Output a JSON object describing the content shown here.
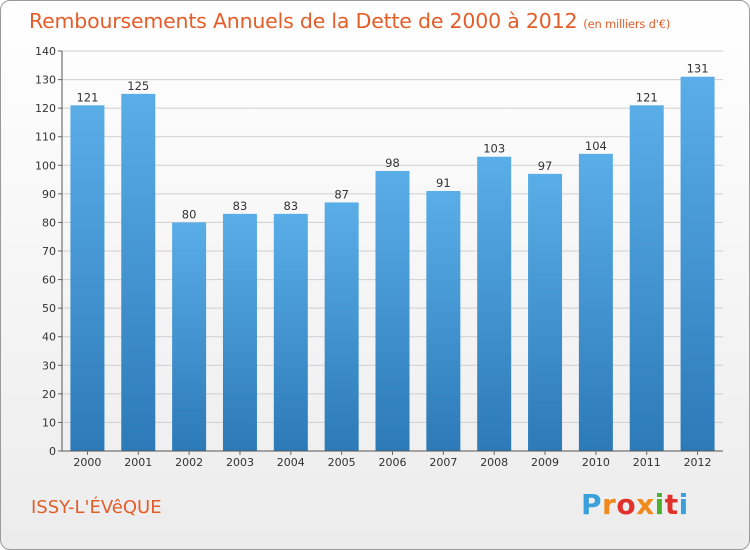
{
  "header": {
    "title": "Remboursements Annuels de la Dette de 2000 à 2012",
    "unit": "(en milliers d'€)"
  },
  "footer": {
    "place": "ISSY-L'ÉVêQUE",
    "logo": "Proxiti",
    "logo_colors": [
      "#3aa0dc",
      "#f08a1c",
      "#e0312b",
      "#f08a1c",
      "#4caf30",
      "#e0312b",
      "#3aa0dc"
    ]
  },
  "colors": {
    "bar_top": "#5aaee8",
    "bar_bottom": "#2c7ab8",
    "grid": "#cfcfcf",
    "axis_text": "#333333",
    "title": "#e35d2a"
  },
  "chart_data": {
    "type": "bar",
    "categories": [
      "2000",
      "2001",
      "2002",
      "2003",
      "2004",
      "2005",
      "2006",
      "2007",
      "2008",
      "2009",
      "2010",
      "2011",
      "2012"
    ],
    "values": [
      121,
      125,
      80,
      83,
      83,
      87,
      98,
      91,
      103,
      97,
      104,
      121,
      131
    ],
    "yticks": [
      0,
      10,
      20,
      30,
      40,
      50,
      60,
      70,
      80,
      90,
      100,
      110,
      120,
      130,
      140
    ],
    "ylim": [
      0,
      140
    ],
    "grid": true,
    "legend": "none",
    "title": "Remboursements Annuels de la Dette de 2000 à 2012",
    "ylabel": "",
    "xlabel": ""
  }
}
